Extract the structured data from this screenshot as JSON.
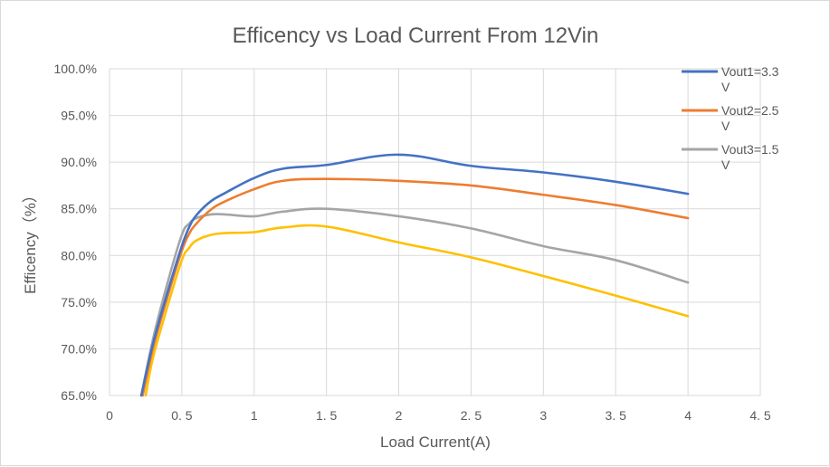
{
  "chart_data": {
    "type": "line",
    "title": "Efficency vs Load Current From 12Vin",
    "xlabel": "Load Current(A)",
    "ylabel": "Efficency（%）",
    "xlim": [
      0,
      4.5
    ],
    "ylim": [
      65,
      100
    ],
    "x_ticks": [
      0,
      0.5,
      1,
      1.5,
      2,
      2.5,
      3,
      3.5,
      4,
      4.5
    ],
    "x_tick_labels": [
      "0",
      "0. 5",
      "1",
      "1. 5",
      "2",
      "2. 5",
      "3",
      "3. 5",
      "4",
      "4. 5"
    ],
    "y_ticks": [
      65,
      70,
      75,
      80,
      85,
      90,
      95,
      100
    ],
    "y_tick_labels": [
      "65.0%",
      "70.0%",
      "75.0%",
      "80.0%",
      "85.0%",
      "90.0%",
      "95.0%",
      "100.0%"
    ],
    "grid": true,
    "legend_position": "top-right",
    "series": [
      {
        "name": "Vout1=3.3V",
        "legend_lines": [
          "Vout1=3.3",
          "V"
        ],
        "color": "#4472c4",
        "x": [
          0.22,
          0.3,
          0.4,
          0.5,
          0.55,
          0.6,
          0.7,
          0.8,
          1.0,
          1.2,
          1.5,
          2.0,
          2.5,
          3.0,
          3.5,
          4.0
        ],
        "y": [
          65.0,
          70.5,
          76.0,
          81.0,
          83.0,
          84.3,
          85.8,
          86.7,
          88.3,
          89.3,
          89.7,
          90.8,
          89.6,
          88.9,
          87.9,
          86.6
        ]
      },
      {
        "name": "Vout2=2.5V",
        "legend_lines": [
          "Vout2=2.5",
          "V"
        ],
        "color": "#ed7d31",
        "x": [
          0.23,
          0.3,
          0.4,
          0.5,
          0.55,
          0.6,
          0.7,
          0.8,
          1.0,
          1.2,
          1.5,
          2.0,
          2.5,
          3.0,
          3.5,
          4.0
        ],
        "y": [
          65.0,
          70.0,
          75.5,
          80.5,
          82.3,
          83.4,
          84.9,
          85.8,
          87.1,
          88.0,
          88.2,
          88.0,
          87.5,
          86.5,
          85.4,
          84.0
        ]
      },
      {
        "name": "Vout3=1.5V",
        "legend_lines": [
          "Vout3=1.5",
          "V"
        ],
        "color": "#a5a5a5",
        "x": [
          0.22,
          0.3,
          0.4,
          0.5,
          0.55,
          0.6,
          0.7,
          0.8,
          1.0,
          1.2,
          1.5,
          2.0,
          2.5,
          3.0,
          3.5,
          4.0
        ],
        "y": [
          65.0,
          71.0,
          77.0,
          82.2,
          83.4,
          84.0,
          84.4,
          84.4,
          84.2,
          84.7,
          85.0,
          84.2,
          82.9,
          81.0,
          79.5,
          77.1
        ]
      },
      {
        "name": "",
        "color": "#ffc000",
        "x": [
          0.25,
          0.3,
          0.4,
          0.5,
          0.55,
          0.6,
          0.7,
          0.8,
          1.0,
          1.2,
          1.5,
          2.0,
          2.5,
          3.0,
          3.5,
          4.0
        ],
        "y": [
          65.0,
          69.0,
          74.5,
          79.5,
          80.8,
          81.6,
          82.2,
          82.4,
          82.5,
          83.0,
          83.1,
          81.4,
          79.8,
          77.8,
          75.7,
          73.5
        ]
      }
    ]
  }
}
